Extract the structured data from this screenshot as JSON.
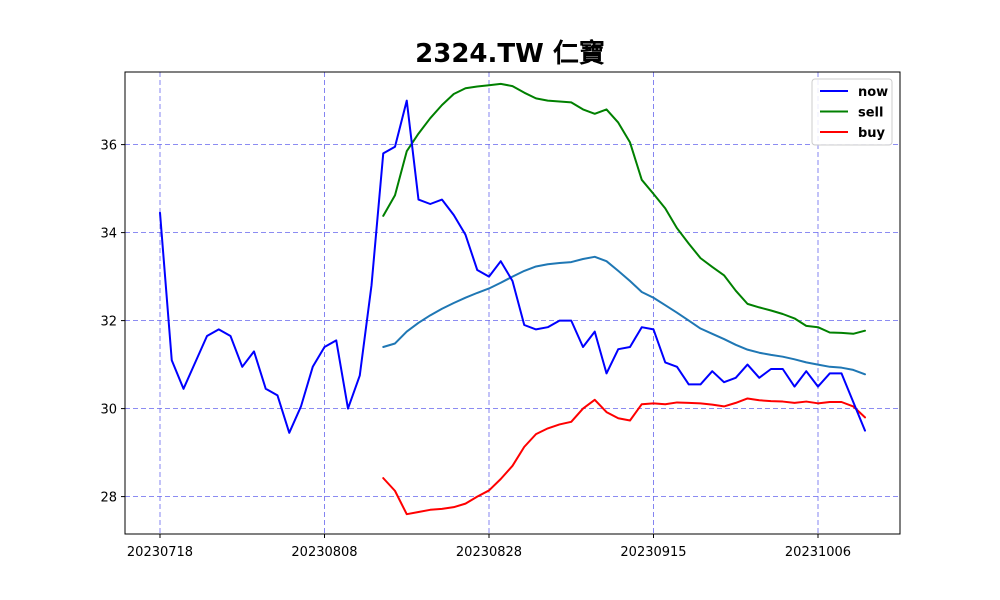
{
  "chart_data": {
    "type": "line",
    "title": "2324.TW 仁寶",
    "xlabel": "",
    "ylabel": "",
    "grid": true,
    "legend_position": "top-right",
    "x_ticks": [
      "20230718",
      "20230808",
      "20230828",
      "20230915",
      "20231006"
    ],
    "y_ticks": [
      28,
      30,
      32,
      34,
      36
    ],
    "ylim": [
      27.15,
      37.65
    ],
    "series": [
      {
        "name": "now",
        "color": "#0000ff",
        "values": [
          34.45,
          31.1,
          30.45,
          31.05,
          31.65,
          31.8,
          31.65,
          30.95,
          31.3,
          30.45,
          30.3,
          29.45,
          30.05,
          30.95,
          31.4,
          31.55,
          30.0,
          30.75,
          32.8,
          35.8,
          35.95,
          37.0,
          34.75,
          34.65,
          34.75,
          34.4,
          33.95,
          33.15,
          33.0,
          33.35,
          32.9,
          31.9,
          31.8,
          31.85,
          32.0,
          32.0,
          31.4,
          31.75,
          30.8,
          31.35,
          31.4,
          31.85,
          31.8,
          31.05,
          30.95,
          30.55,
          30.55,
          30.85,
          30.6,
          30.7,
          31.0,
          30.7,
          30.9,
          30.9,
          30.5,
          30.85,
          30.5,
          30.8,
          30.8,
          30.15,
          29.5
        ]
      },
      {
        "name": "sell",
        "color": "#008000",
        "start_index": 19,
        "values": [
          34.38,
          34.85,
          35.85,
          36.25,
          36.6,
          36.9,
          37.15,
          37.28,
          37.32,
          37.35,
          37.38,
          37.33,
          37.18,
          37.05,
          37.0,
          36.98,
          36.96,
          36.8,
          36.7,
          36.8,
          36.5,
          36.05,
          35.2,
          34.88,
          34.55,
          34.1,
          33.75,
          33.42,
          33.22,
          33.03,
          32.68,
          32.38,
          32.3,
          32.23,
          32.15,
          32.05,
          31.88,
          31.85,
          31.73,
          31.72,
          31.7,
          31.77
        ]
      },
      {
        "name": "buy",
        "color": "#ff0000",
        "start_index": 19,
        "values": [
          28.42,
          28.13,
          27.6,
          27.65,
          27.7,
          27.72,
          27.76,
          27.84,
          28.0,
          28.14,
          28.4,
          28.7,
          29.13,
          29.42,
          29.55,
          29.64,
          29.7,
          30.0,
          30.2,
          29.92,
          29.78,
          29.73,
          30.1,
          30.12,
          30.1,
          30.14,
          30.13,
          30.12,
          30.09,
          30.05,
          30.13,
          30.23,
          30.19,
          30.17,
          30.16,
          30.13,
          30.16,
          30.12,
          30.15,
          30.15,
          30.05,
          29.8
        ]
      },
      {
        "name": "",
        "color": "#1f77b4",
        "start_index": 19,
        "values": [
          31.4,
          31.48,
          31.75,
          31.95,
          32.12,
          32.27,
          32.4,
          32.52,
          32.63,
          32.73,
          32.86,
          33.0,
          33.13,
          33.23,
          33.28,
          33.31,
          33.33,
          33.4,
          33.45,
          33.35,
          33.13,
          32.9,
          32.65,
          32.52,
          32.35,
          32.18,
          32.0,
          31.82,
          31.7,
          31.58,
          31.45,
          31.34,
          31.27,
          31.22,
          31.18,
          31.12,
          31.05,
          31.0,
          30.95,
          30.93,
          30.88,
          30.78
        ]
      }
    ]
  }
}
